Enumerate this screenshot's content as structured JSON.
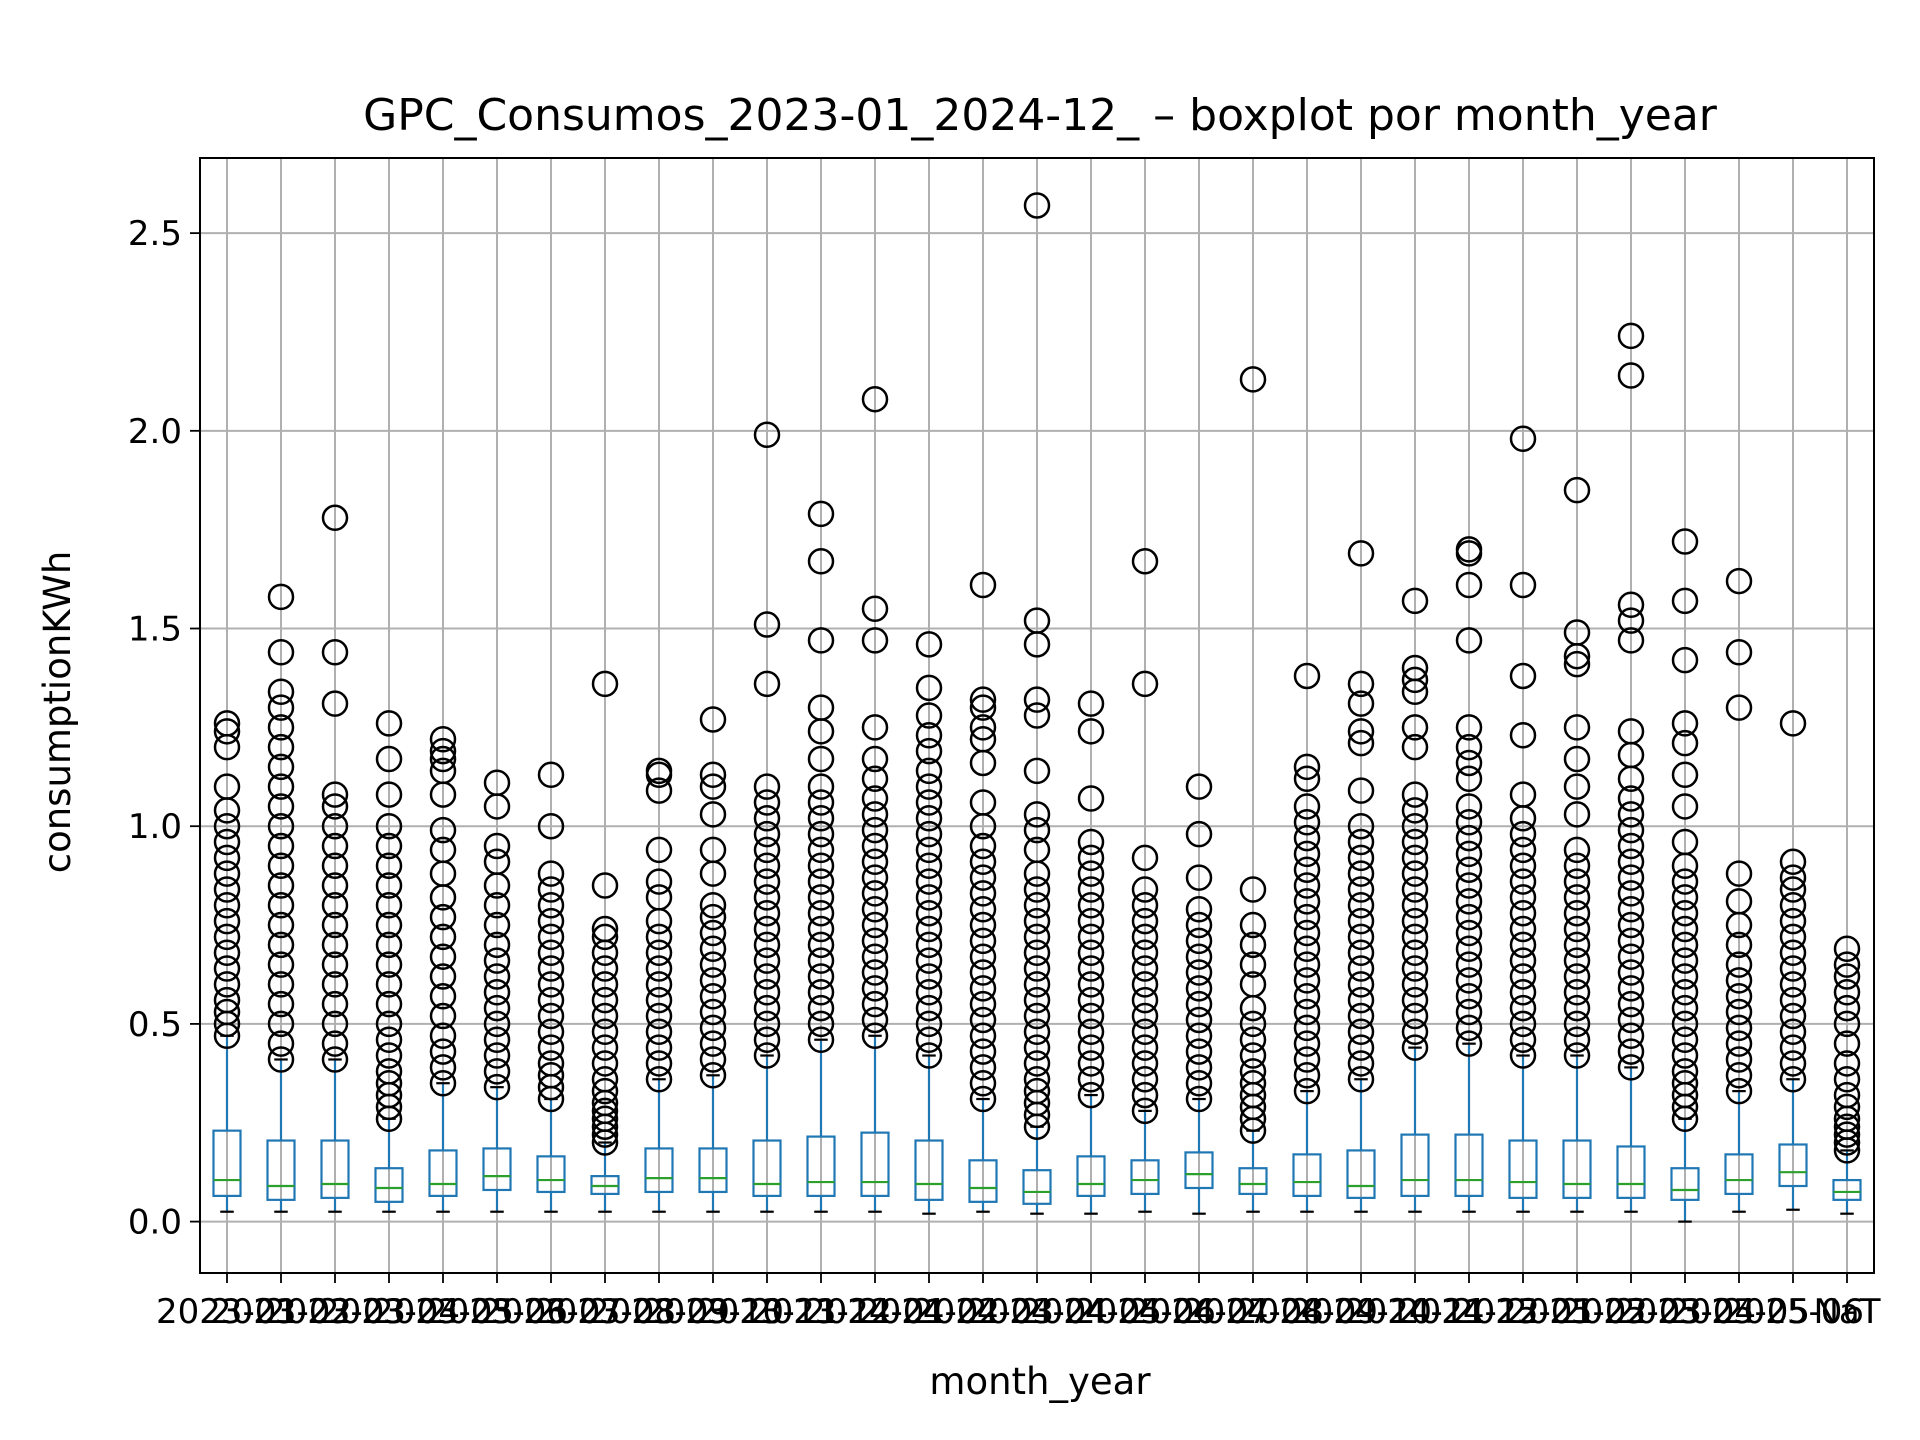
{
  "chart_data": {
    "type": "boxplot",
    "title": "GPC_Consumos_2023-01_2024-12_ – boxplot por month_year",
    "xlabel": "month_year",
    "ylabel": "consumptionKWh",
    "ylim": [
      -0.13,
      2.69
    ],
    "yticks": [
      0.0,
      0.5,
      1.0,
      1.5,
      2.0,
      2.5
    ],
    "ytick_labels": [
      "0.0",
      "0.5",
      "1.0",
      "1.5",
      "2.0",
      "2.5"
    ],
    "grid": true,
    "categories": [
      "2023-01",
      "2023-02",
      "2023-03",
      "2023-04",
      "2023-05",
      "2023-06",
      "2023-07",
      "2023-08",
      "2023-09",
      "2023-10",
      "2023-11",
      "2023-12",
      "2024-01",
      "2024-02",
      "2024-03",
      "2024-04",
      "2024-05",
      "2024-06",
      "2024-07",
      "2024-08",
      "2024-09",
      "2024-10",
      "2024-11",
      "2024-12",
      "2025-01",
      "2025-02",
      "2025-03",
      "2025-04",
      "2025-05",
      "2025-06",
      "NaT"
    ],
    "boxes": [
      {
        "whislo": 0.025,
        "q1": 0.065,
        "med": 0.105,
        "q3": 0.23,
        "whishi": 0.47
      },
      {
        "whislo": 0.025,
        "q1": 0.055,
        "med": 0.09,
        "q3": 0.205,
        "whishi": 0.41
      },
      {
        "whislo": 0.025,
        "q1": 0.06,
        "med": 0.095,
        "q3": 0.205,
        "whishi": 0.41
      },
      {
        "whislo": 0.025,
        "q1": 0.05,
        "med": 0.085,
        "q3": 0.135,
        "whishi": 0.26
      },
      {
        "whislo": 0.025,
        "q1": 0.065,
        "med": 0.095,
        "q3": 0.18,
        "whishi": 0.35
      },
      {
        "whislo": 0.025,
        "q1": 0.08,
        "med": 0.115,
        "q3": 0.185,
        "whishi": 0.34
      },
      {
        "whislo": 0.025,
        "q1": 0.075,
        "med": 0.105,
        "q3": 0.165,
        "whishi": 0.31
      },
      {
        "whislo": 0.025,
        "q1": 0.07,
        "med": 0.09,
        "q3": 0.115,
        "whishi": 0.2
      },
      {
        "whislo": 0.025,
        "q1": 0.075,
        "med": 0.11,
        "q3": 0.185,
        "whishi": 0.36
      },
      {
        "whislo": 0.025,
        "q1": 0.075,
        "med": 0.11,
        "q3": 0.185,
        "whishi": 0.37
      },
      {
        "whislo": 0.025,
        "q1": 0.065,
        "med": 0.095,
        "q3": 0.205,
        "whishi": 0.42
      },
      {
        "whislo": 0.025,
        "q1": 0.065,
        "med": 0.1,
        "q3": 0.215,
        "whishi": 0.46
      },
      {
        "whislo": 0.025,
        "q1": 0.065,
        "med": 0.1,
        "q3": 0.225,
        "whishi": 0.47
      },
      {
        "whislo": 0.02,
        "q1": 0.055,
        "med": 0.095,
        "q3": 0.205,
        "whishi": 0.42
      },
      {
        "whislo": 0.025,
        "q1": 0.05,
        "med": 0.085,
        "q3": 0.155,
        "whishi": 0.31
      },
      {
        "whislo": 0.02,
        "q1": 0.045,
        "med": 0.075,
        "q3": 0.13,
        "whishi": 0.24
      },
      {
        "whislo": 0.02,
        "q1": 0.065,
        "med": 0.095,
        "q3": 0.165,
        "whishi": 0.32
      },
      {
        "whislo": 0.025,
        "q1": 0.07,
        "med": 0.105,
        "q3": 0.155,
        "whishi": 0.28
      },
      {
        "whislo": 0.02,
        "q1": 0.085,
        "med": 0.12,
        "q3": 0.175,
        "whishi": 0.31
      },
      {
        "whislo": 0.025,
        "q1": 0.07,
        "med": 0.095,
        "q3": 0.135,
        "whishi": 0.23
      },
      {
        "whislo": 0.025,
        "q1": 0.065,
        "med": 0.1,
        "q3": 0.17,
        "whishi": 0.33
      },
      {
        "whislo": 0.025,
        "q1": 0.06,
        "med": 0.09,
        "q3": 0.18,
        "whishi": 0.36
      },
      {
        "whislo": 0.025,
        "q1": 0.065,
        "med": 0.105,
        "q3": 0.22,
        "whishi": 0.44
      },
      {
        "whislo": 0.025,
        "q1": 0.065,
        "med": 0.105,
        "q3": 0.22,
        "whishi": 0.45
      },
      {
        "whislo": 0.025,
        "q1": 0.06,
        "med": 0.1,
        "q3": 0.205,
        "whishi": 0.42
      },
      {
        "whislo": 0.025,
        "q1": 0.06,
        "med": 0.095,
        "q3": 0.205,
        "whishi": 0.42
      },
      {
        "whislo": 0.025,
        "q1": 0.06,
        "med": 0.095,
        "q3": 0.19,
        "whishi": 0.39
      },
      {
        "whislo": 0.0,
        "q1": 0.055,
        "med": 0.08,
        "q3": 0.135,
        "whishi": 0.26
      },
      {
        "whislo": 0.025,
        "q1": 0.07,
        "med": 0.105,
        "q3": 0.17,
        "whishi": 0.33
      },
      {
        "whislo": 0.03,
        "q1": 0.09,
        "med": 0.125,
        "q3": 0.195,
        "whishi": 0.36
      },
      {
        "whislo": 0.02,
        "q1": 0.055,
        "med": 0.075,
        "q3": 0.105,
        "whishi": 0.18
      }
    ],
    "outliers": [
      [
        0.47,
        0.5,
        0.53,
        0.56,
        0.6,
        0.64,
        0.68,
        0.72,
        0.76,
        0.8,
        0.84,
        0.88,
        0.92,
        0.96,
        1.0,
        1.04,
        1.1,
        1.2,
        1.24,
        1.26
      ],
      [
        0.41,
        0.45,
        0.5,
        0.55,
        0.6,
        0.65,
        0.7,
        0.75,
        0.8,
        0.85,
        0.9,
        0.95,
        1.0,
        1.05,
        1.1,
        1.15,
        1.2,
        1.25,
        1.3,
        1.34,
        1.44,
        1.58
      ],
      [
        0.41,
        0.45,
        0.5,
        0.55,
        0.6,
        0.65,
        0.7,
        0.75,
        0.8,
        0.85,
        0.9,
        0.95,
        1.0,
        1.05,
        1.08,
        1.31,
        1.44,
        1.78
      ],
      [
        0.26,
        0.29,
        0.32,
        0.35,
        0.38,
        0.42,
        0.46,
        0.5,
        0.55,
        0.6,
        0.65,
        0.7,
        0.75,
        0.8,
        0.85,
        0.9,
        0.95,
        1.0,
        1.08,
        1.17,
        1.26
      ],
      [
        0.35,
        0.39,
        0.43,
        0.47,
        0.52,
        0.57,
        0.62,
        0.67,
        0.72,
        0.77,
        0.82,
        0.88,
        0.94,
        0.99,
        1.08,
        1.14,
        1.17,
        1.19,
        1.22
      ],
      [
        0.34,
        0.38,
        0.42,
        0.46,
        0.5,
        0.54,
        0.58,
        0.62,
        0.66,
        0.7,
        0.75,
        0.8,
        0.85,
        0.91,
        0.95,
        1.05,
        1.11
      ],
      [
        0.31,
        0.34,
        0.37,
        0.4,
        0.44,
        0.48,
        0.52,
        0.56,
        0.6,
        0.64,
        0.68,
        0.72,
        0.76,
        0.8,
        0.84,
        0.88,
        1.0,
        1.13
      ],
      [
        0.2,
        0.22,
        0.24,
        0.26,
        0.28,
        0.3,
        0.33,
        0.36,
        0.4,
        0.44,
        0.48,
        0.52,
        0.56,
        0.6,
        0.64,
        0.68,
        0.72,
        0.74,
        0.85,
        1.36
      ],
      [
        0.36,
        0.4,
        0.44,
        0.48,
        0.52,
        0.56,
        0.6,
        0.64,
        0.68,
        0.72,
        0.76,
        0.82,
        0.86,
        0.94,
        1.09,
        1.13,
        1.14
      ],
      [
        0.37,
        0.41,
        0.45,
        0.49,
        0.53,
        0.57,
        0.61,
        0.65,
        0.69,
        0.73,
        0.77,
        0.8,
        0.88,
        0.94,
        1.03,
        1.1,
        1.13,
        1.27
      ],
      [
        0.42,
        0.46,
        0.5,
        0.54,
        0.58,
        0.62,
        0.66,
        0.7,
        0.74,
        0.78,
        0.82,
        0.86,
        0.9,
        0.94,
        0.98,
        1.02,
        1.06,
        1.1,
        1.36,
        1.51,
        1.99
      ],
      [
        0.46,
        0.5,
        0.54,
        0.58,
        0.62,
        0.66,
        0.7,
        0.74,
        0.78,
        0.82,
        0.86,
        0.9,
        0.94,
        0.98,
        1.02,
        1.06,
        1.1,
        1.17,
        1.24,
        1.3,
        1.47,
        1.67,
        1.79
      ],
      [
        0.47,
        0.51,
        0.55,
        0.59,
        0.63,
        0.67,
        0.71,
        0.75,
        0.79,
        0.83,
        0.87,
        0.91,
        0.95,
        0.99,
        1.03,
        1.07,
        1.12,
        1.17,
        1.25,
        1.47,
        1.55,
        2.08
      ],
      [
        0.42,
        0.46,
        0.5,
        0.54,
        0.58,
        0.62,
        0.66,
        0.7,
        0.74,
        0.78,
        0.82,
        0.86,
        0.9,
        0.94,
        0.98,
        1.02,
        1.06,
        1.1,
        1.14,
        1.19,
        1.23,
        1.28,
        1.35,
        1.46
      ],
      [
        0.31,
        0.35,
        0.39,
        0.43,
        0.47,
        0.51,
        0.55,
        0.59,
        0.63,
        0.67,
        0.71,
        0.75,
        0.79,
        0.83,
        0.87,
        0.91,
        0.95,
        1.0,
        1.06,
        1.16,
        1.22,
        1.25,
        1.3,
        1.32,
        1.61
      ],
      [
        0.24,
        0.27,
        0.3,
        0.33,
        0.36,
        0.4,
        0.44,
        0.48,
        0.52,
        0.56,
        0.6,
        0.64,
        0.68,
        0.72,
        0.76,
        0.8,
        0.84,
        0.88,
        0.94,
        0.99,
        1.03,
        1.14,
        1.28,
        1.32,
        1.46,
        1.52,
        2.57
      ],
      [
        0.32,
        0.36,
        0.4,
        0.44,
        0.48,
        0.52,
        0.56,
        0.6,
        0.64,
        0.68,
        0.72,
        0.76,
        0.8,
        0.84,
        0.88,
        0.92,
        0.96,
        1.07,
        1.24,
        1.31
      ],
      [
        0.28,
        0.32,
        0.36,
        0.4,
        0.44,
        0.48,
        0.52,
        0.56,
        0.6,
        0.64,
        0.68,
        0.72,
        0.76,
        0.8,
        0.84,
        0.92,
        1.36,
        1.67
      ],
      [
        0.31,
        0.35,
        0.39,
        0.43,
        0.47,
        0.51,
        0.55,
        0.59,
        0.63,
        0.67,
        0.71,
        0.75,
        0.79,
        0.87,
        0.98,
        1.1
      ],
      [
        0.23,
        0.26,
        0.29,
        0.32,
        0.35,
        0.38,
        0.42,
        0.46,
        0.5,
        0.54,
        0.6,
        0.65,
        0.7,
        0.75,
        0.84,
        2.13
      ],
      [
        0.33,
        0.37,
        0.41,
        0.45,
        0.49,
        0.53,
        0.57,
        0.61,
        0.65,
        0.69,
        0.73,
        0.77,
        0.81,
        0.85,
        0.89,
        0.93,
        0.97,
        1.01,
        1.05,
        1.12,
        1.15,
        1.38
      ],
      [
        0.36,
        0.4,
        0.44,
        0.48,
        0.52,
        0.56,
        0.6,
        0.64,
        0.68,
        0.72,
        0.76,
        0.8,
        0.84,
        0.88,
        0.92,
        0.96,
        1.0,
        1.09,
        1.21,
        1.24,
        1.31,
        1.36,
        1.69
      ],
      [
        0.44,
        0.48,
        0.52,
        0.56,
        0.6,
        0.64,
        0.68,
        0.72,
        0.76,
        0.8,
        0.84,
        0.88,
        0.92,
        0.96,
        1.0,
        1.04,
        1.08,
        1.2,
        1.25,
        1.34,
        1.37,
        1.4,
        1.57
      ],
      [
        0.45,
        0.49,
        0.53,
        0.57,
        0.61,
        0.65,
        0.69,
        0.73,
        0.77,
        0.81,
        0.85,
        0.89,
        0.93,
        0.97,
        1.01,
        1.05,
        1.12,
        1.16,
        1.2,
        1.25,
        1.47,
        1.61,
        1.69,
        1.7
      ],
      [
        0.42,
        0.46,
        0.5,
        0.54,
        0.58,
        0.62,
        0.66,
        0.7,
        0.74,
        0.78,
        0.82,
        0.86,
        0.9,
        0.94,
        0.98,
        1.02,
        1.08,
        1.23,
        1.38,
        1.61,
        1.98
      ],
      [
        0.42,
        0.46,
        0.5,
        0.54,
        0.58,
        0.62,
        0.66,
        0.7,
        0.74,
        0.78,
        0.82,
        0.86,
        0.9,
        0.94,
        1.03,
        1.1,
        1.17,
        1.25,
        1.41,
        1.43,
        1.49,
        1.85
      ],
      [
        0.39,
        0.43,
        0.47,
        0.51,
        0.55,
        0.59,
        0.63,
        0.67,
        0.71,
        0.75,
        0.79,
        0.83,
        0.87,
        0.91,
        0.95,
        0.99,
        1.03,
        1.07,
        1.12,
        1.18,
        1.24,
        1.47,
        1.52,
        1.56,
        2.14,
        2.24
      ],
      [
        0.26,
        0.29,
        0.32,
        0.35,
        0.38,
        0.42,
        0.46,
        0.5,
        0.54,
        0.58,
        0.62,
        0.66,
        0.7,
        0.74,
        0.78,
        0.82,
        0.86,
        0.9,
        0.96,
        1.05,
        1.13,
        1.21,
        1.26,
        1.42,
        1.57,
        1.72
      ],
      [
        0.33,
        0.37,
        0.41,
        0.45,
        0.49,
        0.53,
        0.57,
        0.61,
        0.65,
        0.7,
        0.75,
        0.81,
        0.88,
        1.3,
        1.44,
        1.62
      ],
      [
        0.36,
        0.4,
        0.44,
        0.48,
        0.52,
        0.56,
        0.6,
        0.64,
        0.68,
        0.72,
        0.76,
        0.8,
        0.84,
        0.87,
        0.91,
        1.26
      ],
      [
        0.18,
        0.2,
        0.22,
        0.24,
        0.26,
        0.29,
        0.32,
        0.36,
        0.4,
        0.45,
        0.5,
        0.54,
        0.58,
        0.62,
        0.65,
        0.69
      ]
    ]
  }
}
